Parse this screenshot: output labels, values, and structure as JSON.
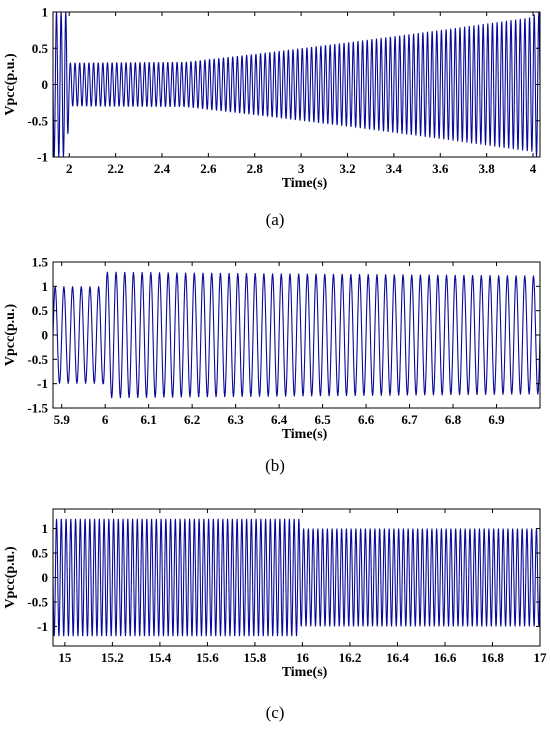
{
  "chart_data": [
    {
      "type": "line",
      "panel_label": "(a)",
      "xlabel": "Time(s)",
      "ylabel": "Vpcc(p.u.)",
      "xlim": [
        1.93,
        4.03
      ],
      "ylim": [
        -1,
        1
      ],
      "xticks": [
        2,
        2.2,
        2.4,
        2.6,
        2.8,
        3,
        3.2,
        3.4,
        3.6,
        3.8,
        4
      ],
      "yticks": [
        -1,
        -0.5,
        0,
        0.5,
        1
      ],
      "color": "#0a0a9a",
      "series": [
        {
          "waveform": "sinusoid",
          "frequency_hz": 50,
          "envelope": [
            {
              "t": 1.93,
              "amp": 1.0
            },
            {
              "t": 1.99,
              "amp": 1.0
            },
            {
              "t": 2.0,
              "amp": 0.3
            },
            {
              "t": 2.5,
              "amp": 0.31
            },
            {
              "t": 2.8,
              "amp": 0.42
            },
            {
              "t": 3.2,
              "amp": 0.58
            },
            {
              "t": 3.6,
              "amp": 0.75
            },
            {
              "t": 4.0,
              "amp": 0.93
            },
            {
              "t": 4.01,
              "amp": 1.0
            },
            {
              "t": 4.03,
              "amp": 1.0
            }
          ]
        }
      ]
    },
    {
      "type": "line",
      "panel_label": "(b)",
      "xlabel": "Time(s)",
      "ylabel": "Vpcc(p.u.)",
      "xlim": [
        5.88,
        7.0
      ],
      "ylim": [
        -1.5,
        1.5
      ],
      "xticks": [
        5.9,
        6,
        6.1,
        6.2,
        6.3,
        6.4,
        6.5,
        6.6,
        6.7,
        6.8,
        6.9
      ],
      "yticks": [
        -1.5,
        -1,
        -0.5,
        0,
        0.5,
        1,
        1.5
      ],
      "color": "#0a0a9a",
      "series": [
        {
          "waveform": "sinusoid",
          "frequency_hz": 50,
          "envelope": [
            {
              "t": 5.88,
              "amp": 1.0
            },
            {
              "t": 5.995,
              "amp": 1.0
            },
            {
              "t": 6.0,
              "amp": 1.3
            },
            {
              "t": 6.2,
              "amp": 1.28
            },
            {
              "t": 6.6,
              "amp": 1.25
            },
            {
              "t": 7.0,
              "amp": 1.22
            }
          ]
        }
      ]
    },
    {
      "type": "line",
      "panel_label": "(c)",
      "xlabel": "Time(s)",
      "ylabel": "Vpcc(p.u.)",
      "xlim": [
        14.95,
        17.0
      ],
      "ylim": [
        -1.4,
        1.4
      ],
      "xticks": [
        15,
        15.2,
        15.4,
        15.6,
        15.8,
        16,
        16.2,
        16.4,
        16.6,
        16.8,
        17
      ],
      "yticks": [
        -1,
        -0.5,
        0,
        0.5,
        1
      ],
      "color": "#0a0a9a",
      "series": [
        {
          "waveform": "sinusoid",
          "frequency_hz": 50,
          "envelope": [
            {
              "t": 14.95,
              "amp": 1.2
            },
            {
              "t": 15.985,
              "amp": 1.2
            },
            {
              "t": 15.995,
              "amp": 1.0
            },
            {
              "t": 17.0,
              "amp": 1.0
            }
          ]
        }
      ]
    }
  ]
}
